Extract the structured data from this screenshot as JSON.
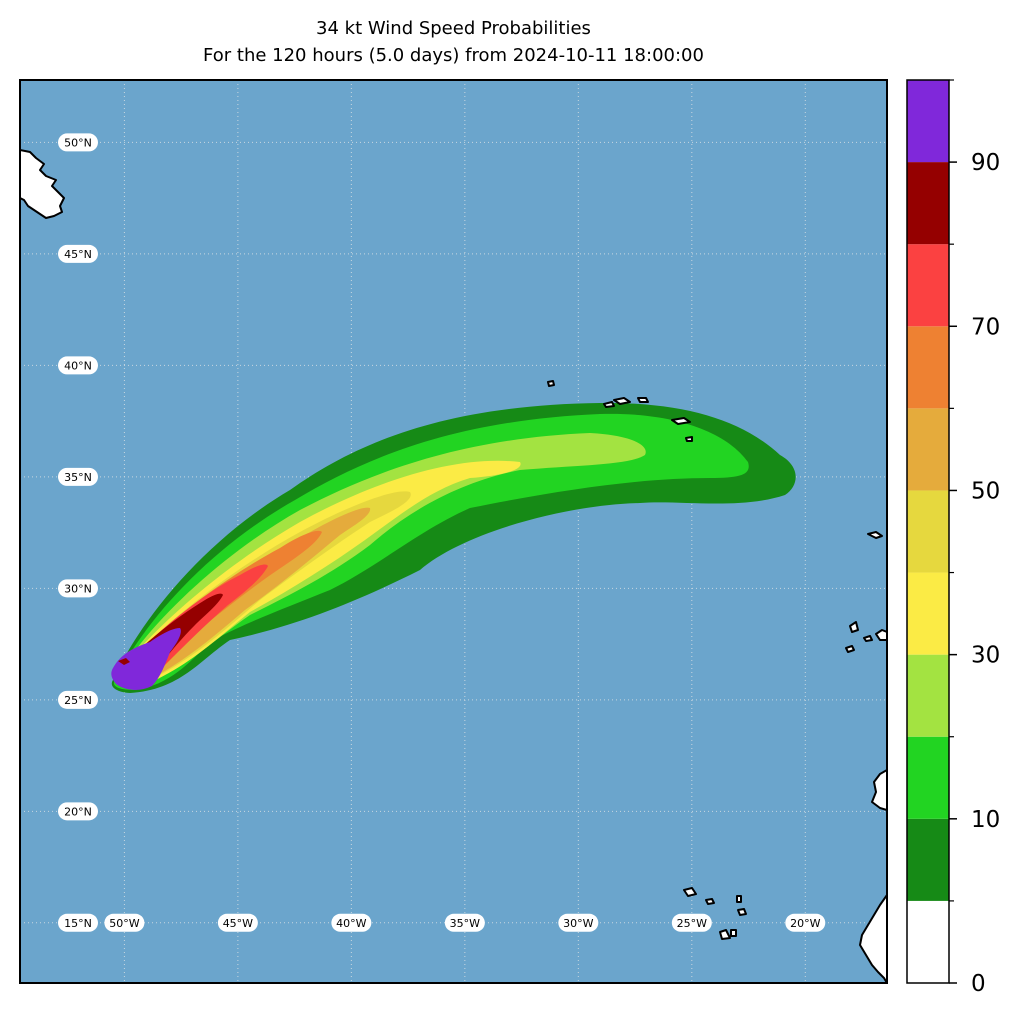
{
  "title": "34 kt Wind Speed Probabilities",
  "subtitle": "For the 120 hours (5.0 days) from 2024-10-11 18:00:00",
  "map": {
    "extent": {
      "lon_min": -54.6,
      "lon_max": -16.4,
      "lat_min": 12.3,
      "lat_max": 52.8
    },
    "colors": {
      "ocean": "#6ba5cc",
      "land": "#ffffff",
      "coast": "#000000",
      "grid": "#c8d6e0"
    },
    "lat_labels": [
      {
        "value": 50,
        "text": "50°N"
      },
      {
        "value": 45,
        "text": "45°N"
      },
      {
        "value": 40,
        "text": "40°N"
      },
      {
        "value": 35,
        "text": "35°N"
      },
      {
        "value": 30,
        "text": "30°N"
      },
      {
        "value": 25,
        "text": "25°N"
      },
      {
        "value": 20,
        "text": "20°N"
      },
      {
        "value": 15,
        "text": "15°N"
      }
    ],
    "lon_labels": [
      {
        "value": -50,
        "text": "50°W"
      },
      {
        "value": -45,
        "text": "45°W"
      },
      {
        "value": -40,
        "text": "40°W"
      },
      {
        "value": -35,
        "text": "35°W"
      },
      {
        "value": -30,
        "text": "30°W"
      },
      {
        "value": -25,
        "text": "25°W"
      },
      {
        "value": -20,
        "text": "20°W"
      }
    ]
  },
  "colorbar": {
    "tick_labels": [
      {
        "value": 0,
        "text": "0"
      },
      {
        "value": 10,
        "text": "10"
      },
      {
        "value": 30,
        "text": "30"
      },
      {
        "value": 50,
        "text": "50"
      },
      {
        "value": 70,
        "text": "70"
      },
      {
        "value": 90,
        "text": "90"
      }
    ],
    "levels": [
      {
        "from": 0,
        "to": 5,
        "color": "#ffffff"
      },
      {
        "from": 5,
        "to": 10,
        "color": "#168a16"
      },
      {
        "from": 10,
        "to": 20,
        "color": "#22d422"
      },
      {
        "from": 20,
        "to": 30,
        "color": "#a3e341"
      },
      {
        "from": 30,
        "to": 40,
        "color": "#fbeb45"
      },
      {
        "from": 40,
        "to": 50,
        "color": "#e6d83e"
      },
      {
        "from": 50,
        "to": 60,
        "color": "#e5ab3c"
      },
      {
        "from": 60,
        "to": 70,
        "color": "#ee8132"
      },
      {
        "from": 70,
        "to": 80,
        "color": "#fb4141"
      },
      {
        "from": 80,
        "to": 90,
        "color": "#950000"
      },
      {
        "from": 90,
        "to": 100,
        "color": "#8028da"
      }
    ]
  }
}
